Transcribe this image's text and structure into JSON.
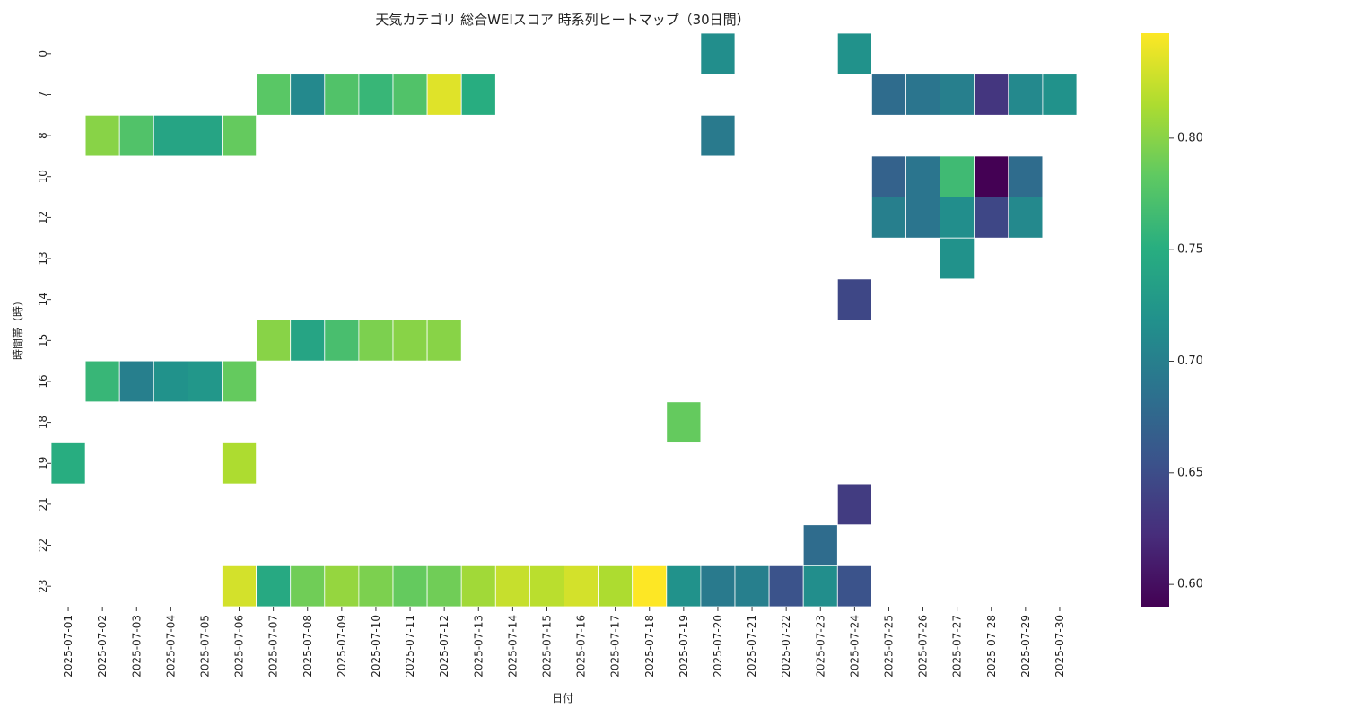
{
  "chart_data": {
    "type": "heatmap",
    "title": "天気カテゴリ 総合WEIスコア 時系列ヒートマップ（30日間）",
    "xlabel": "日付",
    "ylabel": "時間帯（時）",
    "x": [
      "2025-07-01",
      "2025-07-02",
      "2025-07-03",
      "2025-07-04",
      "2025-07-05",
      "2025-07-06",
      "2025-07-07",
      "2025-07-08",
      "2025-07-09",
      "2025-07-10",
      "2025-07-11",
      "2025-07-12",
      "2025-07-13",
      "2025-07-14",
      "2025-07-15",
      "2025-07-16",
      "2025-07-17",
      "2025-07-18",
      "2025-07-19",
      "2025-07-20",
      "2025-07-21",
      "2025-07-22",
      "2025-07-23",
      "2025-07-24",
      "2025-07-25",
      "2025-07-26",
      "2025-07-27",
      "2025-07-28",
      "2025-07-29",
      "2025-07-30"
    ],
    "y": [
      "0",
      "7",
      "8",
      "10",
      "12",
      "13",
      "14",
      "15",
      "16",
      "18",
      "19",
      "21",
      "22",
      "23"
    ],
    "colormap": "viridis",
    "vmin": 0.59,
    "vmax": 0.847,
    "colorbar_ticks": [
      0.6,
      0.65,
      0.7,
      0.75,
      0.8
    ],
    "colorbar_tick_labels": [
      "0.60",
      "0.65",
      "0.70",
      "0.75",
      "0.80"
    ],
    "cells": [
      {
        "date": "2025-07-20",
        "hour": "0",
        "value": 0.715
      },
      {
        "date": "2025-07-24",
        "hour": "0",
        "value": 0.72
      },
      {
        "date": "2025-07-07",
        "hour": "7",
        "value": 0.78
      },
      {
        "date": "2025-07-08",
        "hour": "7",
        "value": 0.71
      },
      {
        "date": "2025-07-09",
        "hour": "7",
        "value": 0.775
      },
      {
        "date": "2025-07-10",
        "hour": "7",
        "value": 0.76
      },
      {
        "date": "2025-07-11",
        "hour": "7",
        "value": 0.775
      },
      {
        "date": "2025-07-12",
        "hour": "7",
        "value": 0.835
      },
      {
        "date": "2025-07-13",
        "hour": "7",
        "value": 0.75
      },
      {
        "date": "2025-07-25",
        "hour": "7",
        "value": 0.68
      },
      {
        "date": "2025-07-26",
        "hour": "7",
        "value": 0.69
      },
      {
        "date": "2025-07-27",
        "hour": "7",
        "value": 0.7
      },
      {
        "date": "2025-07-28",
        "hour": "7",
        "value": 0.63
      },
      {
        "date": "2025-07-29",
        "hour": "7",
        "value": 0.71
      },
      {
        "date": "2025-07-30",
        "hour": "7",
        "value": 0.72
      },
      {
        "date": "2025-07-02",
        "hour": "8",
        "value": 0.8
      },
      {
        "date": "2025-07-03",
        "hour": "8",
        "value": 0.775
      },
      {
        "date": "2025-07-04",
        "hour": "8",
        "value": 0.74
      },
      {
        "date": "2025-07-05",
        "hour": "8",
        "value": 0.74
      },
      {
        "date": "2025-07-06",
        "hour": "8",
        "value": 0.785
      },
      {
        "date": "2025-07-20",
        "hour": "8",
        "value": 0.695
      },
      {
        "date": "2025-07-25",
        "hour": "10",
        "value": 0.67
      },
      {
        "date": "2025-07-26",
        "hour": "10",
        "value": 0.69
      },
      {
        "date": "2025-07-27",
        "hour": "10",
        "value": 0.765
      },
      {
        "date": "2025-07-28",
        "hour": "10",
        "value": 0.59
      },
      {
        "date": "2025-07-29",
        "hour": "10",
        "value": 0.68
      },
      {
        "date": "2025-07-25",
        "hour": "12",
        "value": 0.7
      },
      {
        "date": "2025-07-26",
        "hour": "12",
        "value": 0.69
      },
      {
        "date": "2025-07-27",
        "hour": "12",
        "value": 0.715
      },
      {
        "date": "2025-07-28",
        "hour": "12",
        "value": 0.645
      },
      {
        "date": "2025-07-29",
        "hour": "12",
        "value": 0.71
      },
      {
        "date": "2025-07-27",
        "hour": "13",
        "value": 0.72
      },
      {
        "date": "2025-07-24",
        "hour": "14",
        "value": 0.645
      },
      {
        "date": "2025-07-07",
        "hour": "15",
        "value": 0.8
      },
      {
        "date": "2025-07-08",
        "hour": "15",
        "value": 0.74
      },
      {
        "date": "2025-07-09",
        "hour": "15",
        "value": 0.77
      },
      {
        "date": "2025-07-10",
        "hour": "15",
        "value": 0.795
      },
      {
        "date": "2025-07-11",
        "hour": "15",
        "value": 0.8
      },
      {
        "date": "2025-07-12",
        "hour": "15",
        "value": 0.8
      },
      {
        "date": "2025-07-02",
        "hour": "16",
        "value": 0.76
      },
      {
        "date": "2025-07-03",
        "hour": "16",
        "value": 0.7
      },
      {
        "date": "2025-07-04",
        "hour": "16",
        "value": 0.72
      },
      {
        "date": "2025-07-05",
        "hour": "16",
        "value": 0.725
      },
      {
        "date": "2025-07-06",
        "hour": "16",
        "value": 0.785
      },
      {
        "date": "2025-07-19",
        "hour": "18",
        "value": 0.785
      },
      {
        "date": "2025-07-01",
        "hour": "19",
        "value": 0.75
      },
      {
        "date": "2025-07-06",
        "hour": "19",
        "value": 0.815
      },
      {
        "date": "2025-07-24",
        "hour": "21",
        "value": 0.635
      },
      {
        "date": "2025-07-23",
        "hour": "22",
        "value": 0.68
      },
      {
        "date": "2025-07-06",
        "hour": "23",
        "value": 0.83
      },
      {
        "date": "2025-07-07",
        "hour": "23",
        "value": 0.745
      },
      {
        "date": "2025-07-08",
        "hour": "23",
        "value": 0.79
      },
      {
        "date": "2025-07-09",
        "hour": "23",
        "value": 0.805
      },
      {
        "date": "2025-07-10",
        "hour": "23",
        "value": 0.795
      },
      {
        "date": "2025-07-11",
        "hour": "23",
        "value": 0.785
      },
      {
        "date": "2025-07-12",
        "hour": "23",
        "value": 0.79
      },
      {
        "date": "2025-07-13",
        "hour": "23",
        "value": 0.81
      },
      {
        "date": "2025-07-14",
        "hour": "23",
        "value": 0.825
      },
      {
        "date": "2025-07-15",
        "hour": "23",
        "value": 0.82
      },
      {
        "date": "2025-07-16",
        "hour": "23",
        "value": 0.83
      },
      {
        "date": "2025-07-17",
        "hour": "23",
        "value": 0.815
      },
      {
        "date": "2025-07-18",
        "hour": "23",
        "value": 0.847
      },
      {
        "date": "2025-07-19",
        "hour": "23",
        "value": 0.72
      },
      {
        "date": "2025-07-20",
        "hour": "23",
        "value": 0.695
      },
      {
        "date": "2025-07-21",
        "hour": "23",
        "value": 0.7
      },
      {
        "date": "2025-07-22",
        "hour": "23",
        "value": 0.655
      },
      {
        "date": "2025-07-23",
        "hour": "23",
        "value": 0.715
      },
      {
        "date": "2025-07-24",
        "hour": "23",
        "value": 0.655
      }
    ]
  }
}
